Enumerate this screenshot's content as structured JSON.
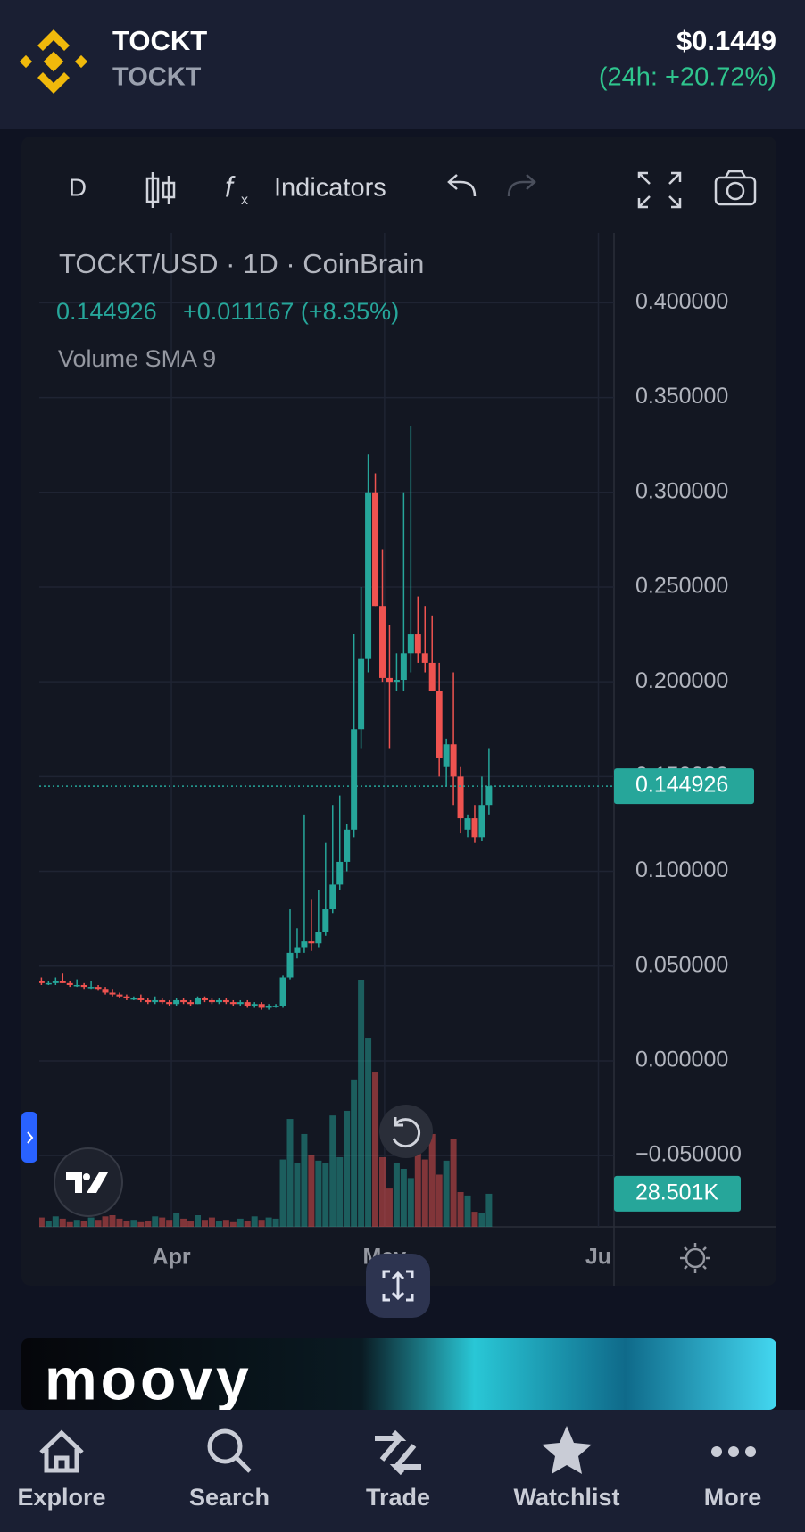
{
  "header": {
    "name": "TOCKT",
    "symbol": "TOCKT",
    "price": "$0.1449",
    "change": "(24h: +20.72%)"
  },
  "toolbar": {
    "interval": "D",
    "indicators": "Indicators"
  },
  "chart_data": {
    "type": "candlestick",
    "title": "TOCKT/USD · 1D · CoinBrain",
    "last": "0.144926",
    "change": "+0.011167 (+8.35%)",
    "indicator": "Volume SMA 9",
    "open": [
      0.042,
      0.041,
      0.041,
      0.042,
      0.041,
      0.04,
      0.04,
      0.039,
      0.039,
      0.038,
      0.036,
      0.035,
      0.034,
      0.033,
      0.033,
      0.032,
      0.031,
      0.032,
      0.031,
      0.03,
      0.032,
      0.031,
      0.03,
      0.033,
      0.032,
      0.031,
      0.032,
      0.031,
      0.03,
      0.031,
      0.029,
      0.03,
      0.028,
      0.029,
      0.029,
      0.044,
      0.057,
      0.06,
      0.063,
      0.062,
      0.068,
      0.08,
      0.093,
      0.105,
      0.122,
      0.175,
      0.212,
      0.3,
      0.24,
      0.202,
      0.2,
      0.201,
      0.215,
      0.225,
      0.215,
      0.21,
      0.195,
      0.155,
      0.167,
      0.15,
      0.122,
      0.128,
      0.118,
      0.135
    ],
    "high": [
      0.044,
      0.042,
      0.044,
      0.046,
      0.042,
      0.043,
      0.041,
      0.042,
      0.04,
      0.039,
      0.038,
      0.036,
      0.035,
      0.034,
      0.035,
      0.033,
      0.034,
      0.033,
      0.032,
      0.033,
      0.033,
      0.032,
      0.034,
      0.034,
      0.033,
      0.033,
      0.033,
      0.032,
      0.032,
      0.032,
      0.031,
      0.031,
      0.03,
      0.03,
      0.045,
      0.08,
      0.07,
      0.13,
      0.085,
      0.09,
      0.115,
      0.135,
      0.14,
      0.125,
      0.225,
      0.25,
      0.32,
      0.31,
      0.27,
      0.23,
      0.215,
      0.3,
      0.335,
      0.245,
      0.24,
      0.235,
      0.21,
      0.17,
      0.205,
      0.155,
      0.13,
      0.135,
      0.15,
      0.165
    ],
    "low": [
      0.04,
      0.04,
      0.04,
      0.041,
      0.039,
      0.039,
      0.038,
      0.038,
      0.037,
      0.035,
      0.034,
      0.033,
      0.032,
      0.032,
      0.031,
      0.03,
      0.03,
      0.03,
      0.029,
      0.029,
      0.03,
      0.029,
      0.03,
      0.031,
      0.03,
      0.03,
      0.03,
      0.029,
      0.029,
      0.028,
      0.028,
      0.027,
      0.027,
      0.028,
      0.028,
      0.043,
      0.054,
      0.057,
      0.058,
      0.06,
      0.066,
      0.078,
      0.09,
      0.1,
      0.118,
      0.165,
      0.205,
      0.24,
      0.2,
      0.165,
      0.195,
      0.195,
      0.205,
      0.21,
      0.205,
      0.195,
      0.15,
      0.145,
      0.135,
      0.12,
      0.118,
      0.115,
      0.116,
      0.13
    ],
    "close": [
      0.041,
      0.041,
      0.042,
      0.041,
      0.04,
      0.04,
      0.039,
      0.039,
      0.038,
      0.036,
      0.035,
      0.034,
      0.033,
      0.033,
      0.032,
      0.031,
      0.032,
      0.031,
      0.03,
      0.032,
      0.031,
      0.03,
      0.033,
      0.032,
      0.031,
      0.032,
      0.031,
      0.03,
      0.031,
      0.029,
      0.03,
      0.028,
      0.029,
      0.029,
      0.044,
      0.057,
      0.06,
      0.063,
      0.062,
      0.068,
      0.08,
      0.093,
      0.105,
      0.122,
      0.175,
      0.212,
      0.3,
      0.24,
      0.202,
      0.2,
      0.201,
      0.215,
      0.225,
      0.215,
      0.21,
      0.195,
      0.16,
      0.167,
      0.15,
      0.128,
      0.128,
      0.118,
      0.135,
      0.144926
    ],
    "volume": {
      "values": [
        8000,
        5000,
        9000,
        7000,
        4000,
        6000,
        5000,
        8000,
        6000,
        9000,
        10000,
        7000,
        5000,
        6000,
        4000,
        5000,
        9000,
        8000,
        6000,
        12000,
        7000,
        5000,
        10000,
        6000,
        8000,
        5000,
        6000,
        4000,
        7000,
        5000,
        9000,
        6000,
        8000,
        7000,
        58000,
        93000,
        55000,
        80000,
        62000,
        57000,
        55000,
        96000,
        60000,
        100000,
        127000,
        213000,
        163000,
        133000,
        60000,
        33000,
        55000,
        50000,
        42000,
        68000,
        58000,
        80000,
        45000,
        57000,
        76000,
        30000,
        27000,
        13000,
        12000,
        28501
      ]
    },
    "up_color": "#26a69a",
    "down_color": "#ef5350",
    "ylim": [
      -0.0876,
      0.4369
    ],
    "yticks": [
      {
        "value": 0.4,
        "label": "0.400000"
      },
      {
        "value": 0.35,
        "label": "0.350000"
      },
      {
        "value": 0.3,
        "label": "0.300000"
      },
      {
        "value": 0.25,
        "label": "0.250000"
      },
      {
        "value": 0.2,
        "label": "0.200000"
      },
      {
        "value": 0.15,
        "label": "0.150000"
      },
      {
        "value": 0.1,
        "label": "0.100000"
      },
      {
        "value": 0.05,
        "label": "0.050000"
      },
      {
        "value": 0,
        "label": "0.000000"
      },
      {
        "value": -0.05,
        "label": "−0.050000"
      }
    ],
    "xlim": [
      -0.3,
      80.6
    ],
    "xticks": [
      {
        "value": 18.3,
        "label": "Apr"
      },
      {
        "value": 48.3,
        "label": "May"
      },
      {
        "value": 78.4,
        "label": "Ju"
      }
    ],
    "price_marker": {
      "value": 0.144926,
      "label": "0.144926"
    },
    "volume_marker": {
      "value": 28501,
      "label": "28.501K"
    },
    "grid": true
  },
  "ad": {
    "brand": "moovy"
  },
  "nav": [
    "Explore",
    "Search",
    "Trade",
    "Watchlist",
    "More"
  ]
}
